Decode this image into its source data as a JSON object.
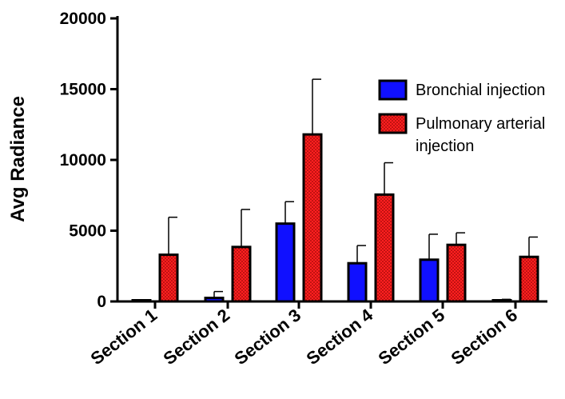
{
  "chart_data": {
    "type": "bar",
    "title": "",
    "xlabel": "",
    "ylabel": "Avg Radiance",
    "ylim": [
      0,
      20000
    ],
    "yticks": [
      0,
      5000,
      10000,
      15000,
      20000
    ],
    "categories": [
      "Section 1",
      "Section 2",
      "Section 3",
      "Section 4",
      "Section 5",
      "Section 6"
    ],
    "series": [
      {
        "name": "Bronchial injection",
        "color": "#1010ff",
        "pattern": "solid",
        "values": [
          50,
          250,
          5500,
          2700,
          2950,
          40
        ],
        "error_upper": [
          80,
          700,
          7050,
          3950,
          4750,
          150
        ]
      },
      {
        "name": "Pulmonary arterial injection",
        "color": "#ff1f1f",
        "pattern": "dotted",
        "values": [
          3300,
          3850,
          11800,
          7550,
          4000,
          3150
        ],
        "error_upper": [
          5950,
          6500,
          15700,
          9800,
          4850,
          4550
        ]
      }
    ],
    "legend": {
      "position": "right",
      "entries": [
        "Bronchial injection",
        "Pulmonary arterial",
        "injection"
      ]
    },
    "grid": false
  }
}
